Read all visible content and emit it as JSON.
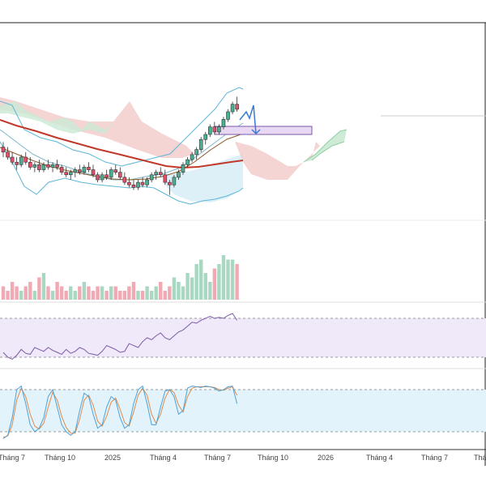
{
  "chart_data": {
    "type": "line",
    "price_panel": {
      "description_free": true,
      "candles": [
        {
          "x": 0,
          "o": 62,
          "h": 64,
          "l": 58,
          "c": 60,
          "dir": "down"
        },
        {
          "x": 1,
          "o": 60,
          "h": 62,
          "l": 57,
          "c": 58,
          "dir": "down"
        },
        {
          "x": 2,
          "o": 58,
          "h": 60,
          "l": 55,
          "c": 56,
          "dir": "down"
        },
        {
          "x": 3,
          "o": 56,
          "h": 58,
          "l": 53,
          "c": 55,
          "dir": "down"
        },
        {
          "x": 4,
          "o": 55,
          "h": 59,
          "l": 54,
          "c": 58,
          "dir": "up"
        },
        {
          "x": 5,
          "o": 58,
          "h": 60,
          "l": 55,
          "c": 56,
          "dir": "down"
        },
        {
          "x": 6,
          "o": 56,
          "h": 58,
          "l": 53,
          "c": 54,
          "dir": "down"
        },
        {
          "x": 7,
          "o": 54,
          "h": 56,
          "l": 52,
          "c": 55,
          "dir": "up"
        },
        {
          "x": 8,
          "o": 55,
          "h": 57,
          "l": 52,
          "c": 53,
          "dir": "down"
        },
        {
          "x": 9,
          "o": 53,
          "h": 56,
          "l": 52,
          "c": 55,
          "dir": "up"
        },
        {
          "x": 10,
          "o": 55,
          "h": 57,
          "l": 53,
          "c": 54,
          "dir": "down"
        },
        {
          "x": 11,
          "o": 54,
          "h": 56,
          "l": 52,
          "c": 55,
          "dir": "up"
        },
        {
          "x": 12,
          "o": 55,
          "h": 57,
          "l": 53,
          "c": 54,
          "dir": "down"
        },
        {
          "x": 13,
          "o": 54,
          "h": 55,
          "l": 51,
          "c": 52,
          "dir": "down"
        },
        {
          "x": 14,
          "o": 52,
          "h": 54,
          "l": 50,
          "c": 51,
          "dir": "down"
        },
        {
          "x": 15,
          "o": 51,
          "h": 53,
          "l": 49,
          "c": 52,
          "dir": "up"
        },
        {
          "x": 16,
          "o": 52,
          "h": 54,
          "l": 50,
          "c": 53,
          "dir": "up"
        },
        {
          "x": 17,
          "o": 53,
          "h": 55,
          "l": 51,
          "c": 52,
          "dir": "down"
        },
        {
          "x": 18,
          "o": 52,
          "h": 55,
          "l": 51,
          "c": 54,
          "dir": "up"
        },
        {
          "x": 19,
          "o": 54,
          "h": 56,
          "l": 52,
          "c": 53,
          "dir": "down"
        },
        {
          "x": 20,
          "o": 53,
          "h": 55,
          "l": 50,
          "c": 51,
          "dir": "down"
        },
        {
          "x": 21,
          "o": 51,
          "h": 52,
          "l": 48,
          "c": 49,
          "dir": "down"
        },
        {
          "x": 22,
          "o": 49,
          "h": 52,
          "l": 48,
          "c": 51,
          "dir": "up"
        },
        {
          "x": 23,
          "o": 51,
          "h": 53,
          "l": 49,
          "c": 50,
          "dir": "down"
        },
        {
          "x": 24,
          "o": 50,
          "h": 54,
          "l": 49,
          "c": 53,
          "dir": "up"
        },
        {
          "x": 25,
          "o": 53,
          "h": 55,
          "l": 51,
          "c": 52,
          "dir": "down"
        },
        {
          "x": 26,
          "o": 52,
          "h": 54,
          "l": 49,
          "c": 50,
          "dir": "down"
        },
        {
          "x": 27,
          "o": 50,
          "h": 52,
          "l": 47,
          "c": 48,
          "dir": "down"
        },
        {
          "x": 28,
          "o": 48,
          "h": 50,
          "l": 46,
          "c": 47,
          "dir": "down"
        },
        {
          "x": 29,
          "o": 47,
          "h": 49,
          "l": 45,
          "c": 46,
          "dir": "down"
        },
        {
          "x": 30,
          "o": 46,
          "h": 49,
          "l": 45,
          "c": 48,
          "dir": "up"
        },
        {
          "x": 31,
          "o": 48,
          "h": 50,
          "l": 46,
          "c": 47,
          "dir": "down"
        },
        {
          "x": 32,
          "o": 47,
          "h": 50,
          "l": 46,
          "c": 49,
          "dir": "up"
        },
        {
          "x": 33,
          "o": 49,
          "h": 52,
          "l": 48,
          "c": 51,
          "dir": "up"
        },
        {
          "x": 34,
          "o": 51,
          "h": 53,
          "l": 49,
          "c": 52,
          "dir": "up"
        },
        {
          "x": 35,
          "o": 52,
          "h": 54,
          "l": 50,
          "c": 51,
          "dir": "down"
        },
        {
          "x": 36,
          "o": 51,
          "h": 53,
          "l": 47,
          "c": 48,
          "dir": "down"
        },
        {
          "x": 37,
          "o": 48,
          "h": 49,
          "l": 43,
          "c": 47,
          "dir": "down"
        },
        {
          "x": 38,
          "o": 47,
          "h": 51,
          "l": 46,
          "c": 50,
          "dir": "up"
        },
        {
          "x": 39,
          "o": 50,
          "h": 53,
          "l": 49,
          "c": 52,
          "dir": "up"
        },
        {
          "x": 40,
          "o": 52,
          "h": 56,
          "l": 51,
          "c": 55,
          "dir": "up"
        },
        {
          "x": 41,
          "o": 55,
          "h": 58,
          "l": 54,
          "c": 57,
          "dir": "up"
        },
        {
          "x": 42,
          "o": 57,
          "h": 60,
          "l": 56,
          "c": 59,
          "dir": "up"
        },
        {
          "x": 43,
          "o": 59,
          "h": 62,
          "l": 57,
          "c": 61,
          "dir": "up"
        },
        {
          "x": 44,
          "o": 61,
          "h": 66,
          "l": 60,
          "c": 65,
          "dir": "up"
        },
        {
          "x": 45,
          "o": 65,
          "h": 68,
          "l": 63,
          "c": 67,
          "dir": "up"
        },
        {
          "x": 46,
          "o": 67,
          "h": 71,
          "l": 66,
          "c": 70,
          "dir": "up"
        },
        {
          "x": 47,
          "o": 70,
          "h": 72,
          "l": 67,
          "c": 68,
          "dir": "down"
        },
        {
          "x": 48,
          "o": 68,
          "h": 71,
          "l": 67,
          "c": 70,
          "dir": "up"
        },
        {
          "x": 49,
          "o": 70,
          "h": 74,
          "l": 69,
          "c": 73,
          "dir": "up"
        },
        {
          "x": 50,
          "o": 73,
          "h": 77,
          "l": 72,
          "c": 76,
          "dir": "up"
        },
        {
          "x": 51,
          "o": 76,
          "h": 80,
          "l": 75,
          "c": 79,
          "dir": "up"
        },
        {
          "x": 52,
          "o": 79,
          "h": 82,
          "l": 76,
          "c": 77,
          "dir": "down"
        }
      ]
    },
    "volume_panel": {
      "values": [
        3,
        2,
        4,
        3,
        2,
        3,
        4,
        2,
        5,
        6,
        3,
        2,
        4,
        3,
        2,
        3,
        2,
        3,
        4,
        3,
        2,
        3,
        3,
        2,
        3,
        3,
        2,
        2,
        3,
        4,
        2,
        2,
        3,
        2,
        3,
        4,
        2,
        3,
        5,
        4,
        3,
        6,
        5,
        8,
        9,
        6,
        4,
        7,
        8,
        10,
        9,
        9,
        8
      ],
      "directions": [
        "down",
        "down",
        "down",
        "down",
        "up",
        "down",
        "down",
        "up",
        "down",
        "up",
        "down",
        "up",
        "down",
        "down",
        "down",
        "up",
        "up",
        "down",
        "up",
        "down",
        "down",
        "down",
        "up",
        "down",
        "up",
        "down",
        "down",
        "down",
        "down",
        "down",
        "up",
        "down",
        "up",
        "up",
        "up",
        "down",
        "down",
        "down",
        "up",
        "up",
        "up",
        "up",
        "up",
        "up",
        "up",
        "up",
        "up",
        "down",
        "up",
        "up",
        "up",
        "up",
        "down"
      ]
    },
    "rsi_panel": {
      "values": [
        35,
        30,
        28,
        32,
        38,
        34,
        33,
        40,
        38,
        36,
        40,
        37,
        35,
        33,
        38,
        34,
        36,
        40,
        38,
        34,
        33,
        32,
        36,
        42,
        40,
        38,
        35,
        36,
        44,
        42,
        40,
        46,
        50,
        48,
        52,
        55,
        50,
        48,
        52,
        56,
        58,
        62,
        66,
        65,
        68,
        70,
        72,
        70,
        71,
        70,
        73,
        75,
        68
      ],
      "band": [
        30,
        70
      ]
    },
    "stoch_panel": {
      "k": [
        10,
        15,
        40,
        80,
        85,
        60,
        30,
        20,
        25,
        40,
        70,
        80,
        55,
        30,
        20,
        15,
        20,
        50,
        75,
        70,
        45,
        25,
        30,
        55,
        70,
        65,
        40,
        25,
        30,
        60,
        80,
        85,
        60,
        30,
        30,
        55,
        78,
        80,
        70,
        45,
        50,
        82,
        85,
        84,
        83,
        85,
        84,
        82,
        78,
        80,
        84,
        85,
        60
      ],
      "d": [
        12,
        14,
        30,
        65,
        82,
        70,
        45,
        28,
        24,
        32,
        55,
        76,
        65,
        42,
        26,
        18,
        18,
        38,
        65,
        72,
        58,
        35,
        28,
        42,
        62,
        68,
        52,
        33,
        28,
        48,
        72,
        82,
        72,
        45,
        32,
        45,
        68,
        80,
        76,
        58,
        48,
        70,
        82,
        84,
        84,
        84,
        84,
        83,
        80,
        79,
        82,
        84,
        72
      ],
      "band": [
        20,
        80
      ]
    },
    "x_axis": {
      "tick_labels": [
        "Tháng 7",
        "Tháng 10",
        "2025",
        "Tháng 4",
        "Tháng 7",
        "Tháng 10",
        "2026",
        "Tháng 4",
        "Tháng 7",
        "Thán"
      ]
    },
    "colors": {
      "up": "#4caf93",
      "down": "#e0506a",
      "ma_slow": "#c0392b",
      "ma_fast": "#8b5a2b",
      "bollinger": "#5db6d8",
      "cloud_bull": "#cbe8d4",
      "cloud_bear": "#f3c9c9",
      "projection": "#3a7bd5",
      "rsi_line": "#7b5aa6",
      "rsi_fill": "#efe9fa",
      "stoch_k": "#4aa3d9",
      "stoch_d": "#e08a4a",
      "stoch_fill": "#e3f3fb",
      "vol_up": "#a8d8c2",
      "vol_down": "#f1a9b4",
      "target_box": "#e9d8f4"
    }
  }
}
